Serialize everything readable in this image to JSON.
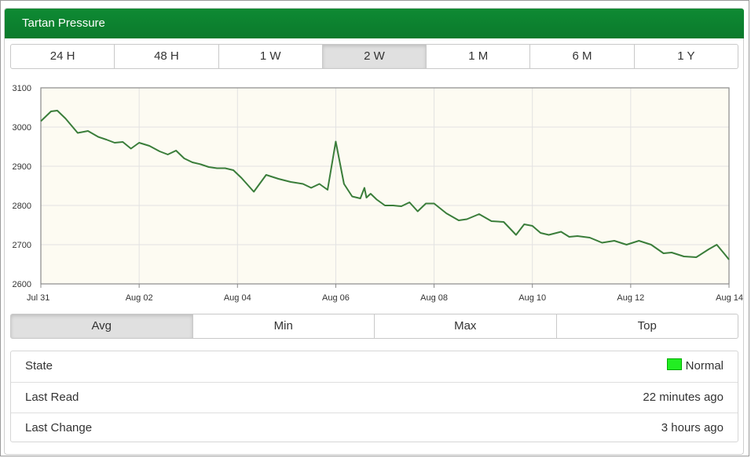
{
  "widget": {
    "title": "Tartan Pressure"
  },
  "ranges": {
    "items": [
      "24 H",
      "48 H",
      "1 W",
      "2 W",
      "1 M",
      "6 M",
      "1 Y"
    ],
    "selected": "2 W"
  },
  "modes": {
    "items": [
      "Avg",
      "Min",
      "Max",
      "Top"
    ],
    "selected": "Avg"
  },
  "info": {
    "rows": [
      {
        "label": "State",
        "value": "Normal",
        "color": "#22ee22"
      },
      {
        "label": "Last Read",
        "value": "22 minutes ago"
      },
      {
        "label": "Last Change",
        "value": "3 hours ago"
      }
    ]
  },
  "colors": {
    "header": "#0e8a33",
    "line": "#3a7d3a",
    "plot_background": "#fdfbf2",
    "grid": "#e2e2e2"
  },
  "chart_data": {
    "type": "line",
    "ylim": [
      2600,
      3100
    ],
    "yticks": [
      2600,
      2700,
      2800,
      2900,
      3000,
      3100
    ],
    "xlim": [
      "2023-07-31",
      "2023-08-14"
    ],
    "xticks": [
      "Jul 31",
      "Aug 02",
      "Aug 04",
      "Aug 06",
      "Aug 08",
      "Aug 10",
      "Aug 12",
      "Aug 14"
    ],
    "grid": true,
    "x": [
      "2023-07-31T00:00",
      "2023-07-31T03:00",
      "2023-07-31T05:00",
      "2023-07-31T08:00",
      "2023-07-31T12:00",
      "2023-07-31T18:00",
      "2023-07-31T23:00",
      "2023-08-01T04:00",
      "2023-08-01T08:00",
      "2023-08-01T12:00",
      "2023-08-01T16:00",
      "2023-08-01T20:00",
      "2023-08-02T00:00",
      "2023-08-02T05:00",
      "2023-08-02T10:00",
      "2023-08-02T14:00",
      "2023-08-02T18:00",
      "2023-08-02T22:00",
      "2023-08-03T02:00",
      "2023-08-03T06:00",
      "2023-08-03T10:00",
      "2023-08-03T14:00",
      "2023-08-03T18:00",
      "2023-08-03T22:00",
      "2023-08-04T02:00",
      "2023-08-04T08:00",
      "2023-08-04T14:00",
      "2023-08-04T20:00",
      "2023-08-05T02:00",
      "2023-08-05T08:00",
      "2023-08-05T12:00",
      "2023-08-05T16:00",
      "2023-08-05T20:00",
      "2023-08-06T00:00",
      "2023-08-06T04:00",
      "2023-08-06T08:00",
      "2023-08-06T12:00",
      "2023-08-06T14:00",
      "2023-08-06T15:00",
      "2023-08-06T16:00",
      "2023-08-06T17:00",
      "2023-08-06T20:00",
      "2023-08-07T00:00",
      "2023-08-07T04:00",
      "2023-08-07T08:00",
      "2023-08-07T12:00",
      "2023-08-07T16:00",
      "2023-08-07T20:00",
      "2023-08-08T00:00",
      "2023-08-08T06:00",
      "2023-08-08T12:00",
      "2023-08-08T16:00",
      "2023-08-08T22:00",
      "2023-08-09T04:00",
      "2023-08-09T10:00",
      "2023-08-09T16:00",
      "2023-08-09T20:00",
      "2023-08-10T00:00",
      "2023-08-10T04:00",
      "2023-08-10T08:00",
      "2023-08-10T14:00",
      "2023-08-10T18:00",
      "2023-08-10T22:00",
      "2023-08-11T04:00",
      "2023-08-11T10:00",
      "2023-08-11T16:00",
      "2023-08-11T22:00",
      "2023-08-12T04:00",
      "2023-08-12T10:00",
      "2023-08-12T16:00",
      "2023-08-12T20:00",
      "2023-08-13T02:00",
      "2023-08-13T08:00",
      "2023-08-13T14:00",
      "2023-08-13T18:00",
      "2023-08-13T22:00",
      "2023-08-14T00:00"
    ],
    "series": [
      {
        "values": [
          3015,
          3030,
          3040,
          3042,
          3022,
          2985,
          2990,
          2975,
          2968,
          2960,
          2962,
          2945,
          2960,
          2952,
          2938,
          2930,
          2940,
          2920,
          2910,
          2905,
          2898,
          2895,
          2895,
          2890,
          2870,
          2835,
          2878,
          2868,
          2860,
          2855,
          2845,
          2855,
          2840,
          2963,
          2855,
          2823,
          2818,
          2845,
          2820,
          2825,
          2830,
          2815,
          2800,
          2800,
          2798,
          2808,
          2785,
          2805,
          2805,
          2780,
          2762,
          2765,
          2778,
          2760,
          2758,
          2725,
          2752,
          2748,
          2730,
          2725,
          2733,
          2720,
          2722,
          2718,
          2705,
          2710,
          2700,
          2710,
          2700,
          2678,
          2680,
          2670,
          2668,
          2688,
          2700,
          2675,
          2662
        ]
      }
    ]
  }
}
